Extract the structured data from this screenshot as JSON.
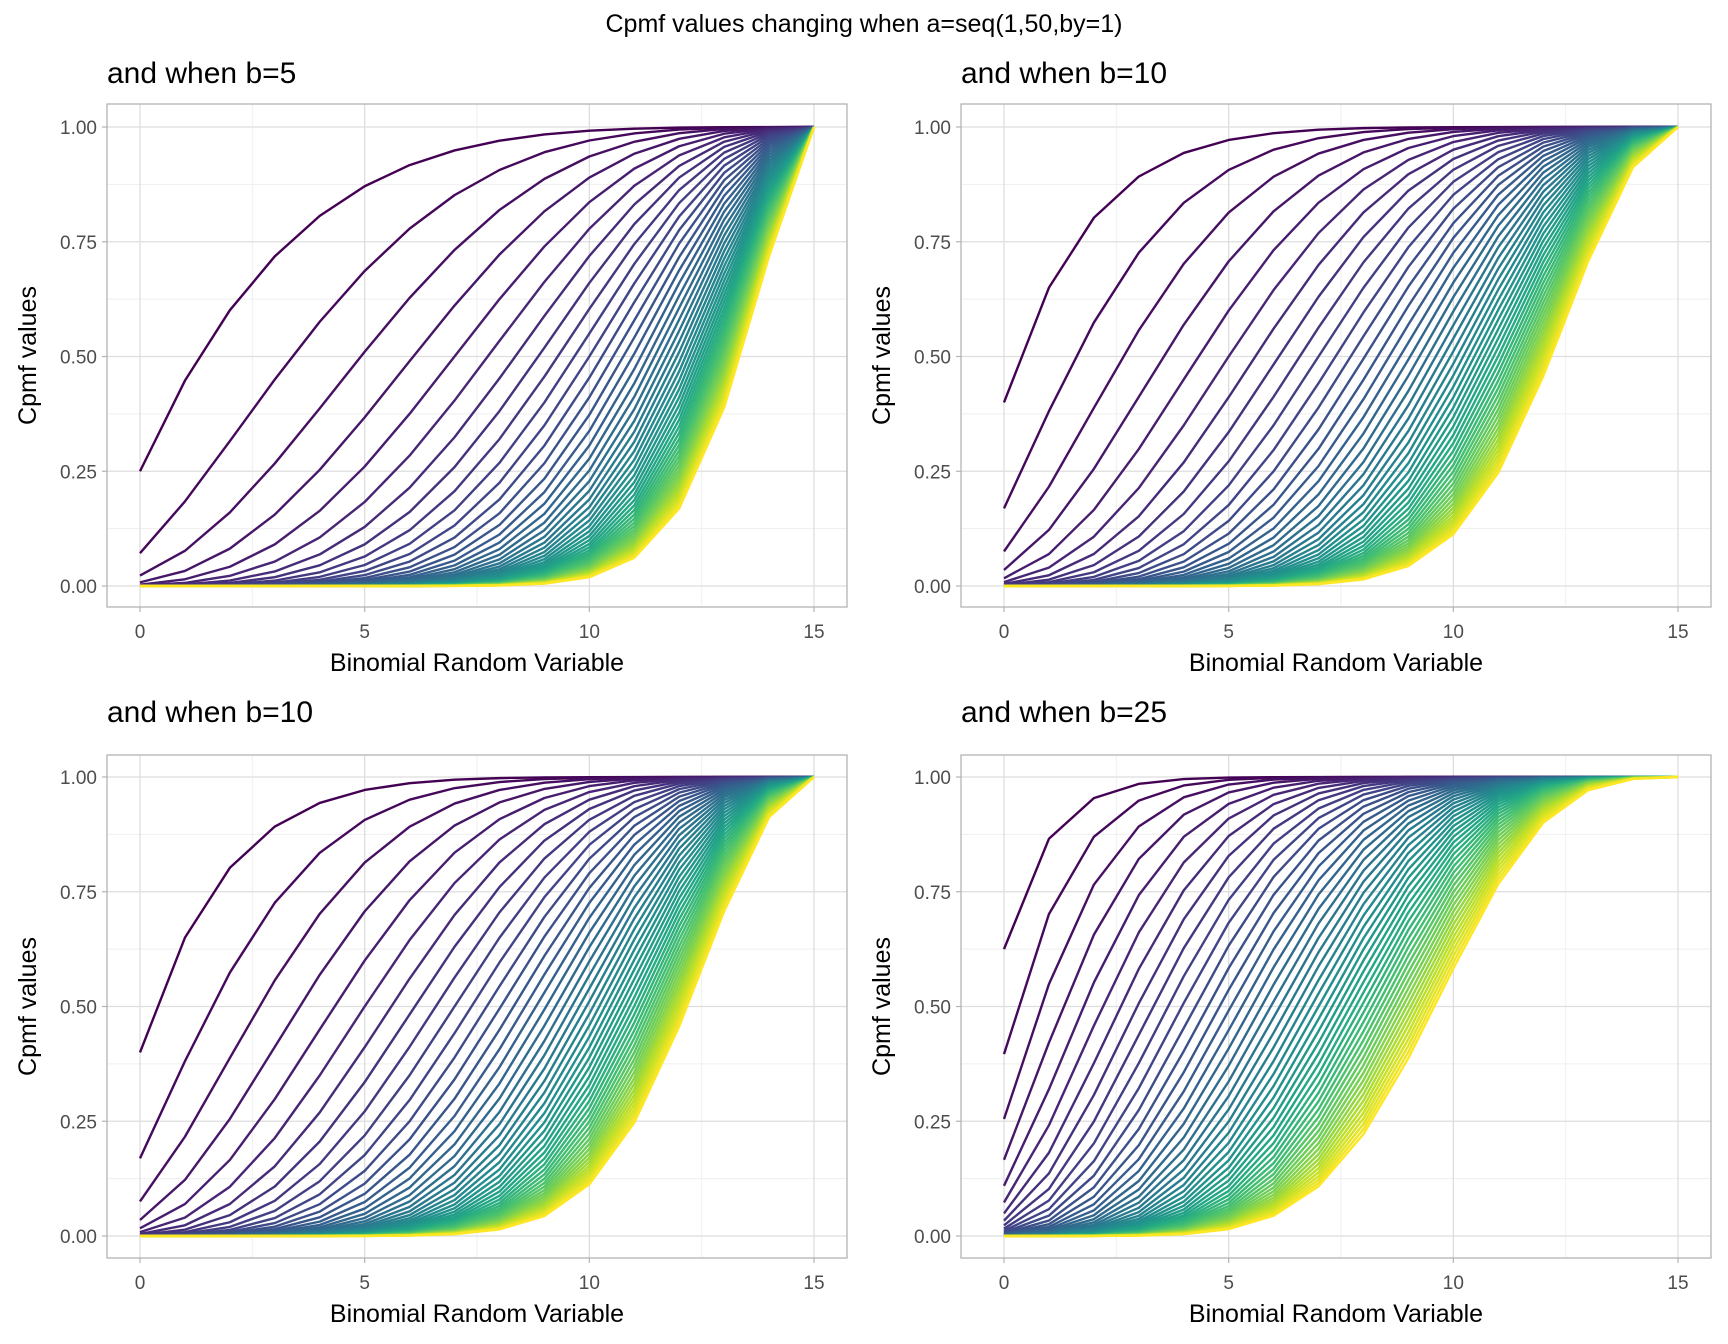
{
  "title": "Cpmf values changing when a=seq(1,50,by=1)",
  "colors": {
    "palette": "viridis",
    "viridis_stops": [
      "#440154",
      "#482475",
      "#414487",
      "#355F8D",
      "#2A788E",
      "#21908D",
      "#22A884",
      "#44BF70",
      "#7AD151",
      "#BDDF26",
      "#FDE725"
    ],
    "grid_major": "#DEDEDE",
    "grid_minor": "#EFEFEF",
    "panel_border": "#B3B3B3"
  },
  "chart_data": [
    {
      "type": "line",
      "title": "and when b=5",
      "xlabel": "Binomial Random Variable",
      "ylabel": "Cpmf values",
      "distribution": "beta-binomial CDF",
      "n": 15,
      "a": {
        "from": 1,
        "to": 50,
        "by": 1
      },
      "b": 5,
      "x": [
        0,
        1,
        2,
        3,
        4,
        5,
        6,
        7,
        8,
        9,
        10,
        11,
        12,
        13,
        14,
        15
      ],
      "xlim": [
        0,
        15
      ],
      "ylim": [
        0,
        1
      ],
      "xticks": [
        "0",
        "5",
        "10",
        "15"
      ],
      "yticks": [
        "0.00",
        "0.25",
        "0.50",
        "0.75",
        "1.00"
      ],
      "grid": true,
      "legend": "none"
    },
    {
      "type": "line",
      "title": "and when b=10",
      "xlabel": "Binomial Random Variable",
      "ylabel": "Cpmf values",
      "distribution": "beta-binomial CDF",
      "n": 15,
      "a": {
        "from": 1,
        "to": 50,
        "by": 1
      },
      "b": 10,
      "x": [
        0,
        1,
        2,
        3,
        4,
        5,
        6,
        7,
        8,
        9,
        10,
        11,
        12,
        13,
        14,
        15
      ],
      "xlim": [
        0,
        15
      ],
      "ylim": [
        0,
        1
      ],
      "xticks": [
        "0",
        "5",
        "10",
        "15"
      ],
      "yticks": [
        "0.00",
        "0.25",
        "0.50",
        "0.75",
        "1.00"
      ],
      "grid": true,
      "legend": "none"
    },
    {
      "type": "line",
      "title": "and when b=10",
      "xlabel": "Binomial Random Variable",
      "ylabel": "Cpmf values",
      "distribution": "beta-binomial CDF",
      "n": 15,
      "a": {
        "from": 1,
        "to": 50,
        "by": 1
      },
      "b": 10,
      "x": [
        0,
        1,
        2,
        3,
        4,
        5,
        6,
        7,
        8,
        9,
        10,
        11,
        12,
        13,
        14,
        15
      ],
      "xlim": [
        0,
        15
      ],
      "ylim": [
        0,
        1
      ],
      "xticks": [
        "0",
        "5",
        "10",
        "15"
      ],
      "yticks": [
        "0.00",
        "0.25",
        "0.50",
        "0.75",
        "1.00"
      ],
      "grid": true,
      "legend": "none"
    },
    {
      "type": "line",
      "title": "and when b=25",
      "xlabel": "Binomial Random Variable",
      "ylabel": "Cpmf values",
      "distribution": "beta-binomial CDF",
      "n": 15,
      "a": {
        "from": 1,
        "to": 50,
        "by": 1
      },
      "b": 25,
      "x": [
        0,
        1,
        2,
        3,
        4,
        5,
        6,
        7,
        8,
        9,
        10,
        11,
        12,
        13,
        14,
        15
      ],
      "xlim": [
        0,
        15
      ],
      "ylim": [
        0,
        1
      ],
      "xticks": [
        "0",
        "5",
        "10",
        "15"
      ],
      "yticks": [
        "0.00",
        "0.25",
        "0.50",
        "0.75",
        "1.00"
      ],
      "grid": true,
      "legend": "none"
    }
  ]
}
